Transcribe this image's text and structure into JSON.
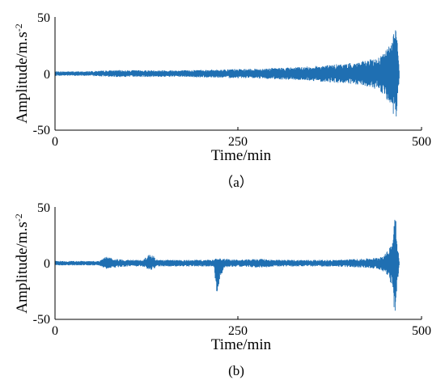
{
  "chart_data": [
    {
      "type": "line",
      "panel_label": "（a）",
      "xlabel": "Time/min",
      "ylabel": "Amplitude/m.s",
      "ylabel_superscript": "-2",
      "xlim": [
        0,
        500
      ],
      "ylim": [
        -50,
        50
      ],
      "xticks": [
        "0",
        "250",
        "500"
      ],
      "yticks": [
        "50",
        "0",
        "-50"
      ],
      "grid": false,
      "color": "#1f6fb2",
      "series": [
        {
          "x": [
            0,
            20,
            40,
            60,
            80,
            100,
            120,
            140,
            160,
            180,
            200,
            220,
            240,
            260,
            280,
            300,
            320,
            340,
            360,
            380,
            400,
            420,
            440,
            450,
            455,
            460,
            463,
            465,
            467,
            470
          ],
          "amplitude": [
            2,
            2,
            2,
            2.5,
            3,
            3,
            3,
            3,
            3,
            3,
            3.5,
            3.5,
            4,
            4,
            4.5,
            5,
            5.5,
            6,
            7,
            8,
            9,
            11,
            14,
            20,
            24,
            30,
            42,
            45,
            30,
            0
          ],
          "min_envelope": [
            -2,
            -2,
            -2,
            -2.5,
            -3,
            -3,
            -3,
            -3,
            -3,
            -3,
            -3.5,
            -3.5,
            -4,
            -4,
            -4.5,
            -5,
            -5.5,
            -6,
            -7,
            -8,
            -9,
            -11,
            -14,
            -20,
            -26,
            -35,
            -44,
            -48,
            -30,
            0
          ]
        }
      ]
    },
    {
      "type": "line",
      "panel_label": "(b)",
      "xlabel": "Time/min",
      "ylabel": "Amplitude/m.s",
      "ylabel_superscript": "-2",
      "xlim": [
        0,
        500
      ],
      "ylim": [
        -50,
        50
      ],
      "xticks": [
        "0",
        "250",
        "500"
      ],
      "yticks": [
        "50",
        "0",
        "-50"
      ],
      "grid": false,
      "color": "#1f6fb2",
      "series": [
        {
          "x": [
            0,
            20,
            40,
            60,
            70,
            80,
            100,
            120,
            130,
            140,
            160,
            180,
            200,
            210,
            217,
            220,
            230,
            250,
            280,
            300,
            340,
            380,
            420,
            440,
            450,
            455,
            460,
            463,
            465,
            467,
            470
          ],
          "amplitude": [
            2,
            2,
            2,
            2,
            6,
            4,
            3,
            3,
            9,
            3,
            3,
            3,
            3,
            3,
            3,
            5,
            4,
            3,
            4,
            3,
            3,
            3,
            4,
            5,
            8,
            12,
            20,
            45,
            48,
            20,
            0
          ],
          "min_envelope": [
            -2,
            -2,
            -2,
            -2,
            -5,
            -4,
            -3,
            -3,
            -7,
            -3,
            -3,
            -3,
            -3,
            -3,
            -3,
            -28,
            -4,
            -3,
            -4,
            -3,
            -3,
            -3,
            -4,
            -5,
            -8,
            -12,
            -22,
            -44,
            -47,
            -20,
            0
          ]
        }
      ]
    }
  ]
}
